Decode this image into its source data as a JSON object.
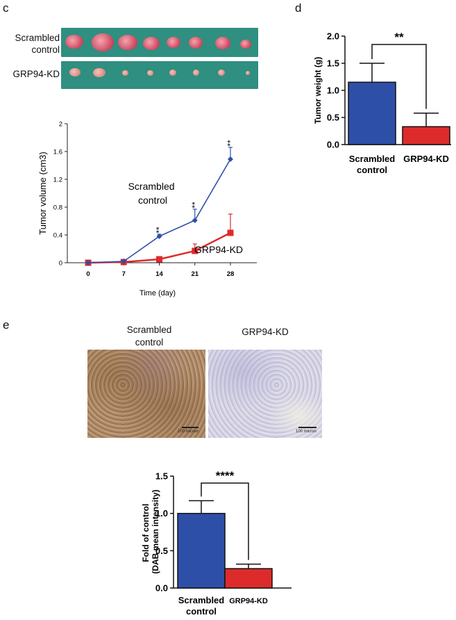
{
  "panel_c": {
    "letter": "c",
    "photo_labels": {
      "scrambled": [
        "Scrambled",
        "control"
      ],
      "knockdown": "GRP94-KD"
    }
  },
  "panel_d": {
    "letter": "d"
  },
  "panel_e": {
    "letter": "e",
    "image_labels": {
      "scrambled": [
        "Scrambled",
        "control"
      ],
      "knockdown": "GRP94-KD"
    },
    "scale_bar_text": "100 micron"
  },
  "colors": {
    "blue": "#2e4fa8",
    "red": "#dd2b2b",
    "photo_bg": "#2f8f80"
  },
  "chart_data": [
    {
      "id": "tumor-volume",
      "type": "line",
      "xlabel": "Time (day)",
      "ylabel": "Tumor volume (cm3)",
      "x": [
        0,
        7,
        14,
        21,
        28
      ],
      "ylim": [
        0,
        2
      ],
      "yticks": [
        "0",
        "0.4",
        "0.8",
        "1.2",
        "1.6",
        "2"
      ],
      "yticks_values": [
        0,
        0.4,
        0.8,
        1.2,
        1.6,
        2
      ],
      "xticks": [
        "0",
        "7",
        "14",
        "21",
        "28"
      ],
      "series": [
        {
          "name": "Scrambled control",
          "label_lines": [
            "Scrambled",
            "control"
          ],
          "marker": "diamond",
          "values": [
            0,
            0.02,
            0.38,
            0.61,
            1.49
          ],
          "errors": [
            0,
            0.01,
            0.03,
            0.16,
            0.17
          ]
        },
        {
          "name": "GRP94-KD",
          "label_lines": [
            "GRP94-KD"
          ],
          "marker": "square",
          "values": [
            0,
            0.01,
            0.05,
            0.17,
            0.43
          ],
          "errors": [
            0,
            0.005,
            0.01,
            0.1,
            0.27
          ]
        }
      ],
      "significance": [
        {
          "x": 14,
          "text": "**"
        },
        {
          "x": 21,
          "text": "**"
        },
        {
          "x": 28,
          "text": "**"
        }
      ]
    },
    {
      "id": "tumor-weight",
      "type": "bar",
      "ylabel": "Tumor weight (g)",
      "ylim": [
        0,
        2.0
      ],
      "yticks": [
        "0.0",
        "0.5",
        "1.0",
        "1.5",
        "2.0"
      ],
      "yticks_values": [
        0,
        0.5,
        1.0,
        1.5,
        2.0
      ],
      "categories": [
        [
          "Scrambled",
          "control"
        ],
        [
          "GRP94-KD"
        ]
      ],
      "values": [
        1.15,
        0.33
      ],
      "errors": [
        0.35,
        0.25
      ],
      "significance": "**"
    },
    {
      "id": "dab-intensity",
      "type": "bar",
      "ylabel": [
        "Fold of control",
        "(DAB mean intensity)"
      ],
      "ylim": [
        0,
        1.5
      ],
      "yticks": [
        "0.0",
        "0.5",
        "1.0",
        "1.5"
      ],
      "yticks_values": [
        0,
        0.5,
        1.0,
        1.5
      ],
      "categories": [
        [
          "Scrambled",
          "control"
        ],
        [
          "GRP94-KD"
        ]
      ],
      "values": [
        1.0,
        0.26
      ],
      "errors": [
        0.17,
        0.06
      ],
      "significance": "****"
    }
  ]
}
